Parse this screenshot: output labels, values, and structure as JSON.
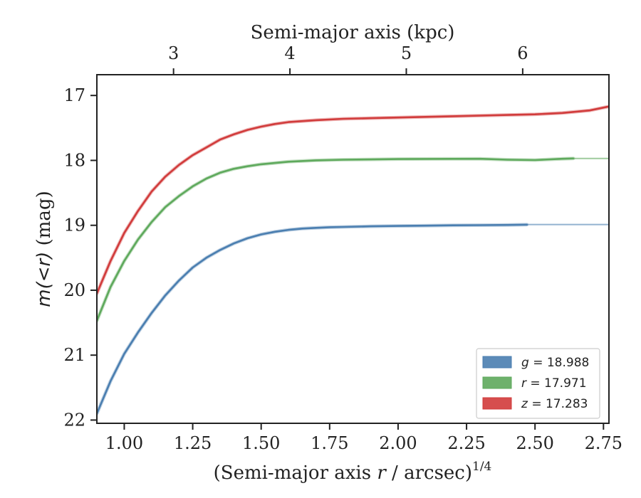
{
  "chart_data": {
    "type": "line",
    "title": "",
    "xlabel": "(Semi-major axis r / arcsec)^1/4",
    "xlabel_parts": {
      "prefix": "(Semi-major axis ",
      "var": "r",
      "suffix": " / arcsec)",
      "sup": "1/4"
    },
    "ylabel": "m(<r) (mag)",
    "ylabel_parts": {
      "math": "m(<r)",
      "suffix": " (mag)"
    },
    "top_xlabel": "Semi-major axis (kpc)",
    "xlim": [
      0.9,
      2.77
    ],
    "ylim": [
      22.05,
      16.68
    ],
    "y_inverted": true,
    "x_ticks": [
      1.0,
      1.25,
      1.5,
      1.75,
      2.0,
      2.25,
      2.5,
      2.75
    ],
    "x_tick_labels": [
      "1.00",
      "1.25",
      "1.50",
      "1.75",
      "2.00",
      "2.25",
      "2.50",
      "2.75"
    ],
    "y_ticks": [
      17,
      18,
      19,
      20,
      21,
      22
    ],
    "y_tick_labels": [
      "17",
      "18",
      "19",
      "20",
      "21",
      "22"
    ],
    "top_x_ticks_kpc": [
      3,
      4,
      5,
      6
    ],
    "top_x_tick_labels": [
      "3",
      "4",
      "5",
      "6"
    ],
    "top_x_tick_positions_in_bottom_units": [
      1.18,
      1.605,
      2.03,
      2.455
    ],
    "legend_position": "lower right",
    "grid": false,
    "series": [
      {
        "name": "g = 18.988",
        "legend_var": "g",
        "legend_value": "= 18.988",
        "color": "#4a7eb0",
        "x": [
          0.9,
          0.95,
          1.0,
          1.05,
          1.1,
          1.15,
          1.2,
          1.25,
          1.3,
          1.35,
          1.4,
          1.45,
          1.5,
          1.55,
          1.6,
          1.65,
          1.7,
          1.75,
          1.8,
          1.9,
          2.0,
          2.1,
          2.2,
          2.3,
          2.4,
          2.47
        ],
        "y": [
          21.9,
          21.4,
          20.98,
          20.65,
          20.35,
          20.08,
          19.85,
          19.65,
          19.5,
          19.38,
          19.28,
          19.2,
          19.14,
          19.1,
          19.07,
          19.05,
          19.04,
          19.03,
          19.025,
          19.015,
          19.01,
          19.005,
          19.0,
          18.998,
          18.995,
          18.99
        ],
        "model_extends_to_x": 2.77,
        "asymptote": 18.988
      },
      {
        "name": "r = 17.971",
        "legend_var": "r",
        "legend_value": "= 17.971",
        "color": "#5ea95c",
        "x": [
          0.9,
          0.95,
          1.0,
          1.05,
          1.1,
          1.15,
          1.2,
          1.25,
          1.3,
          1.35,
          1.4,
          1.45,
          1.5,
          1.55,
          1.6,
          1.7,
          1.8,
          1.9,
          2.0,
          2.1,
          2.2,
          2.3,
          2.4,
          2.5,
          2.6,
          2.64
        ],
        "y": [
          20.47,
          19.95,
          19.55,
          19.22,
          18.95,
          18.72,
          18.55,
          18.4,
          18.28,
          18.19,
          18.13,
          18.09,
          18.06,
          18.04,
          18.02,
          18.0,
          17.99,
          17.985,
          17.98,
          17.978,
          17.976,
          17.975,
          17.99,
          17.995,
          17.975,
          17.97
        ],
        "model_extends_to_x": 2.77,
        "asymptote": 17.971
      },
      {
        "name": "z = 17.283",
        "legend_var": "z",
        "legend_value": "= 17.283",
        "color": "#d13b3b",
        "x": [
          0.9,
          0.95,
          1.0,
          1.05,
          1.1,
          1.15,
          1.2,
          1.25,
          1.3,
          1.35,
          1.4,
          1.45,
          1.5,
          1.55,
          1.6,
          1.7,
          1.8,
          1.9,
          2.0,
          2.1,
          2.2,
          2.3,
          2.4,
          2.5,
          2.6,
          2.7,
          2.77
        ],
        "y": [
          20.05,
          19.55,
          19.12,
          18.78,
          18.48,
          18.25,
          18.07,
          17.92,
          17.8,
          17.68,
          17.6,
          17.53,
          17.48,
          17.44,
          17.41,
          17.38,
          17.36,
          17.35,
          17.34,
          17.33,
          17.32,
          17.31,
          17.3,
          17.29,
          17.27,
          17.23,
          17.17
        ],
        "model_extends_to_x": 2.77,
        "asymptote": 17.283
      }
    ]
  }
}
